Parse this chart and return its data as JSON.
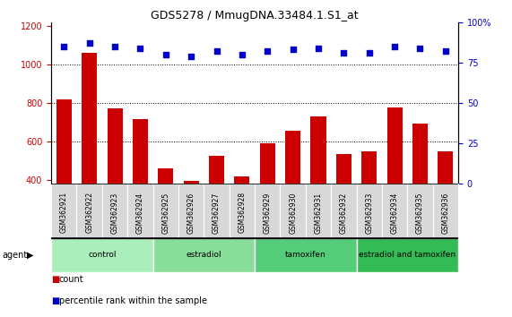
{
  "title": "GDS5278 / MmugDNA.33484.1.S1_at",
  "samples": [
    "GSM362921",
    "GSM362922",
    "GSM362923",
    "GSM362924",
    "GSM362925",
    "GSM362926",
    "GSM362927",
    "GSM362928",
    "GSM362929",
    "GSM362930",
    "GSM362931",
    "GSM362932",
    "GSM362933",
    "GSM362934",
    "GSM362935",
    "GSM362936"
  ],
  "counts": [
    820,
    1060,
    770,
    715,
    460,
    395,
    525,
    420,
    590,
    655,
    730,
    535,
    548,
    775,
    695,
    547
  ],
  "percentiles": [
    85,
    87,
    85,
    84,
    80,
    79,
    82,
    80,
    82,
    83,
    84,
    81,
    81,
    85,
    84,
    82
  ],
  "bar_color": "#cc0000",
  "dot_color": "#0000cc",
  "ylim_left": [
    380,
    1220
  ],
  "ylim_right": [
    0,
    100
  ],
  "yticks_left": [
    400,
    600,
    800,
    1000,
    1200
  ],
  "yticks_right": [
    0,
    25,
    50,
    75,
    100
  ],
  "groups": [
    {
      "label": "control",
      "start": 0,
      "end": 4,
      "color": "#aaeebb"
    },
    {
      "label": "estradiol",
      "start": 4,
      "end": 8,
      "color": "#88dd99"
    },
    {
      "label": "tamoxifen",
      "start": 8,
      "end": 12,
      "color": "#55cc77"
    },
    {
      "label": "estradiol and tamoxifen",
      "start": 12,
      "end": 16,
      "color": "#33bb55"
    }
  ],
  "agent_label": "agent",
  "legend_count_label": "count",
  "legend_percentile_label": "percentile rank within the sample",
  "xticklabel_bg": "#d0d0d0",
  "grid_color": "#000000",
  "dotted_grid_values": [
    600,
    800,
    1000
  ],
  "plot_bg": "#ffffff"
}
